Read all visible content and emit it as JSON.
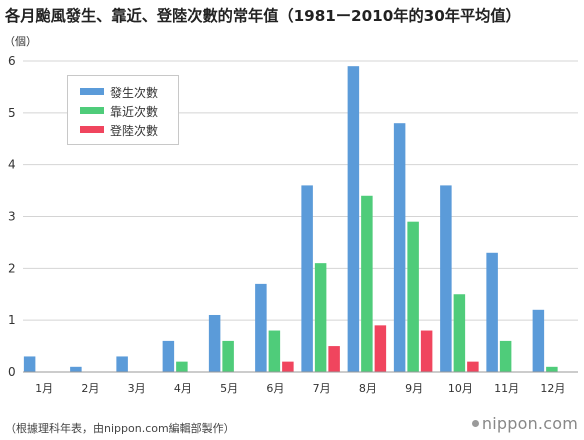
{
  "chart_data": {
    "type": "bar",
    "title": "各月颱風發生、靠近、登陸次數的常年值（1981ー2010年的30年平均值）",
    "ylabel": "（個）",
    "ylim": [
      0,
      6
    ],
    "yticks": [
      "0",
      "1",
      "2",
      "3",
      "4",
      "5",
      "6"
    ],
    "categories": [
      "1月",
      "2月",
      "3月",
      "4月",
      "5月",
      "6月",
      "7月",
      "8月",
      "9月",
      "10月",
      "11月",
      "12月"
    ],
    "series": [
      {
        "name": "發生次數",
        "color": "#5b9bd9",
        "values": [
          0.3,
          0.1,
          0.3,
          0.6,
          1.1,
          1.7,
          3.6,
          5.9,
          4.8,
          3.6,
          2.3,
          1.2
        ]
      },
      {
        "name": "靠近次數",
        "color": "#4fcc7a",
        "values": [
          0,
          0,
          0,
          0.2,
          0.6,
          0.8,
          2.1,
          3.4,
          2.9,
          1.5,
          0.6,
          0.1
        ]
      },
      {
        "name": "登陸次數",
        "color": "#f0455e",
        "values": [
          0,
          0,
          0,
          0,
          0,
          0.2,
          0.5,
          0.9,
          0.8,
          0.2,
          0,
          0
        ]
      }
    ],
    "grid": true,
    "legend_position": "top-left"
  },
  "footer": {
    "source": "（根據理科年表，由nippon.com編輯部製作）",
    "brand": "nippon.com"
  }
}
